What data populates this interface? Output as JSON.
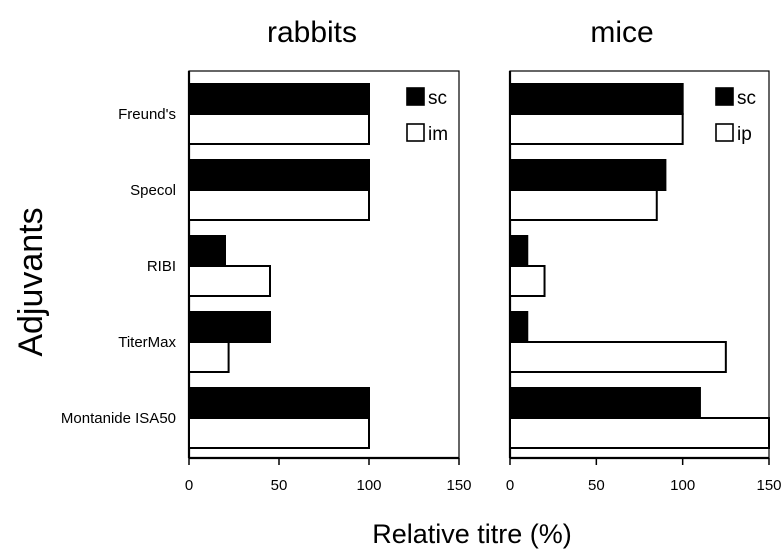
{
  "chart_data": [
    {
      "type": "bar",
      "orientation": "horizontal",
      "title": "rabbits",
      "categories": [
        "Freund's",
        "Specol",
        "RIBI",
        "TiterMax",
        "Montanide ISA50"
      ],
      "series": [
        {
          "name": "sc",
          "values": [
            100,
            100,
            20,
            45,
            100
          ],
          "fill": "#000000"
        },
        {
          "name": "im",
          "values": [
            100,
            100,
            45,
            22,
            100
          ],
          "fill": "#ffffff"
        }
      ],
      "xlim": [
        0,
        150
      ],
      "xticks": [
        "0",
        "50",
        "100",
        "150"
      ],
      "legend_position": "top-right"
    },
    {
      "type": "bar",
      "orientation": "horizontal",
      "title": "mice",
      "categories": [
        "Freund's",
        "Specol",
        "RIBI",
        "TiterMax",
        "Montanide ISA50"
      ],
      "series": [
        {
          "name": "sc",
          "values": [
            100,
            90,
            10,
            10,
            110
          ],
          "fill": "#000000"
        },
        {
          "name": "ip",
          "values": [
            100,
            85,
            20,
            125,
            150
          ],
          "fill": "#ffffff"
        }
      ],
      "xlim": [
        0,
        150
      ],
      "xticks": [
        "0",
        "50",
        "100",
        "150"
      ],
      "legend_position": "top-right"
    }
  ],
  "ylabel": "Adjuvants",
  "xlabel": "Relative titre (%)"
}
